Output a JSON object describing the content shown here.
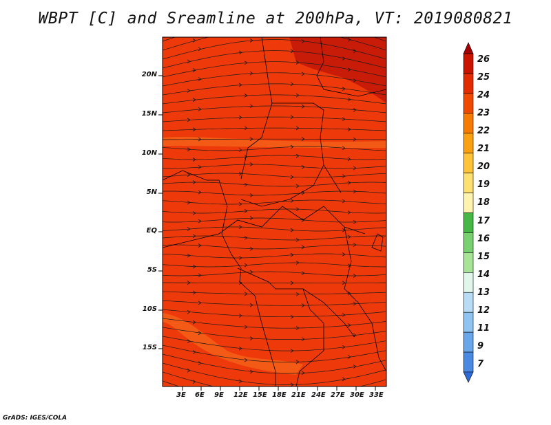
{
  "title": "WBPT [C] and Sreamline at 200hPa, VT: 2019080821",
  "credit": "GrADS: IGES/COLA",
  "map": {
    "lat_labels": [
      "20N",
      "15N",
      "10N",
      "5N",
      "EQ",
      "5S",
      "10S",
      "15S"
    ],
    "lon_labels": [
      "3E",
      "6E",
      "9E",
      "12E",
      "15E",
      "18E",
      "21E",
      "24E",
      "27E",
      "30E",
      "33E"
    ],
    "fill_color": "#ee3a0a",
    "warm_color": "#c81c08",
    "cool_patch_color": "#f25a16",
    "streamline_color": "#1a1a1a"
  },
  "colorbar": {
    "levels": [
      "26",
      "25",
      "24",
      "23",
      "22",
      "21",
      "20",
      "19",
      "18",
      "17",
      "16",
      "15",
      "14",
      "13",
      "12",
      "11",
      "9",
      "7"
    ],
    "colors": [
      "#a50000",
      "#c81400",
      "#e32b00",
      "#ef4a00",
      "#f77b00",
      "#fba010",
      "#fdc43a",
      "#fde070",
      "#fff3b0",
      "#45b845",
      "#78d070",
      "#a8e498",
      "#e0f6ea",
      "#b8dcf6",
      "#90c4f0",
      "#6aa6ea",
      "#4a8ae2",
      "#2e6ad8"
    ]
  }
}
